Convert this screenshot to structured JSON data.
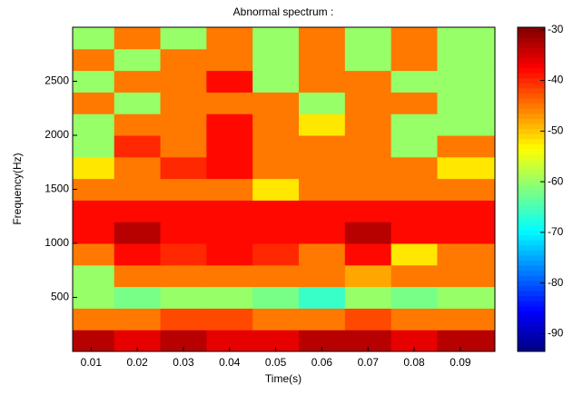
{
  "chart_data": {
    "type": "contour",
    "title": "Abnormal spectrum :",
    "x_label": "Time(s)",
    "y_label": "Frequency(Hz)",
    "x": [
      0.01,
      0.02,
      0.03,
      0.04,
      0.05,
      0.06,
      0.07,
      0.08,
      0.09
    ],
    "y": [
      100,
      300,
      500,
      700,
      900,
      1100,
      1300,
      1500,
      1700,
      1900,
      2100,
      2300,
      2500,
      2700,
      2900
    ],
    "z": [
      [
        -33,
        -36,
        -33,
        -36,
        -36,
        -33,
        -33,
        -36,
        -33
      ],
      [
        -45,
        -45,
        -42,
        -42,
        -45,
        -45,
        -42,
        -45,
        -45
      ],
      [
        -60,
        -62,
        -60,
        -60,
        -62,
        -66,
        -60,
        -62,
        -60
      ],
      [
        -60,
        -45,
        -45,
        -45,
        -45,
        -45,
        -48,
        -45,
        -45
      ],
      [
        -45,
        -38,
        -40,
        -38,
        -40,
        -45,
        -38,
        -52,
        -45
      ],
      [
        -38,
        -33,
        -38,
        -38,
        -38,
        -38,
        -33,
        -38,
        -38
      ],
      [
        -38,
        -38,
        -38,
        -38,
        -38,
        -38,
        -38,
        -38,
        -38
      ],
      [
        -45,
        -45,
        -45,
        -45,
        -52,
        -45,
        -45,
        -45,
        -45
      ],
      [
        -52,
        -45,
        -40,
        -38,
        -45,
        -45,
        -45,
        -45,
        -52
      ],
      [
        -60,
        -40,
        -45,
        -38,
        -45,
        -45,
        -45,
        -60,
        -45
      ],
      [
        -60,
        -45,
        -45,
        -38,
        -45,
        -52,
        -45,
        -60,
        -60
      ],
      [
        -45,
        -60,
        -45,
        -45,
        -45,
        -60,
        -45,
        -45,
        -60
      ],
      [
        -60,
        -45,
        -45,
        -38,
        -60,
        -45,
        -45,
        -60,
        -60
      ],
      [
        -45,
        -60,
        -45,
        -45,
        -60,
        -45,
        -60,
        -45,
        -60
      ],
      [
        -60,
        -45,
        -60,
        -45,
        -60,
        -45,
        -60,
        -45,
        -60
      ]
    ],
    "xlim": [
      0.006,
      0.0975
    ],
    "xticks": [
      0.01,
      0.02,
      0.03,
      0.04,
      0.05,
      0.06,
      0.07,
      0.08,
      0.09
    ],
    "ylim": [
      0,
      3000
    ],
    "yticks": [
      500,
      1000,
      1500,
      2000,
      2500
    ],
    "colormap": "jet",
    "clim": [
      -93.5,
      -29.5
    ],
    "cticks": [
      -30,
      -40,
      -50,
      -60,
      -70,
      -80,
      -90
    ]
  }
}
